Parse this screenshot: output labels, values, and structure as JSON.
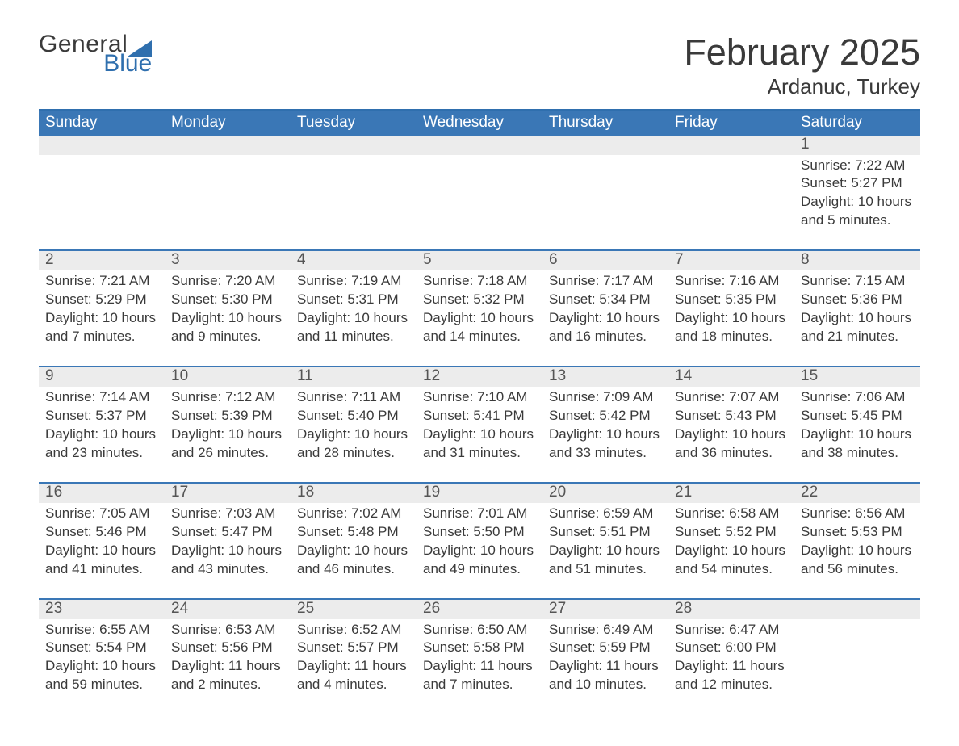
{
  "logo": {
    "top": "General",
    "bottom": "Blue",
    "tri_color": "#2f6fae"
  },
  "header": {
    "month_title": "February 2025",
    "location": "Ardanuc, Turkey"
  },
  "colors": {
    "header_bar": "#3a77b6",
    "border": "#2f6fae",
    "daynum_bg": "#ececec",
    "text": "#3a3a3a",
    "white": "#ffffff"
  },
  "typography": {
    "month_title_fontsize": 45,
    "location_fontsize": 26,
    "dow_fontsize": 19,
    "daynum_fontsize": 19,
    "body_fontsize": 17
  },
  "days_of_week": [
    "Sunday",
    "Monday",
    "Tuesday",
    "Wednesday",
    "Thursday",
    "Friday",
    "Saturday"
  ],
  "weeks": [
    [
      null,
      null,
      null,
      null,
      null,
      null,
      {
        "n": "1",
        "sunrise": "Sunrise: 7:22 AM",
        "sunset": "Sunset: 5:27 PM",
        "day": "Daylight: 10 hours and 5 minutes."
      }
    ],
    [
      {
        "n": "2",
        "sunrise": "Sunrise: 7:21 AM",
        "sunset": "Sunset: 5:29 PM",
        "day": "Daylight: 10 hours and 7 minutes."
      },
      {
        "n": "3",
        "sunrise": "Sunrise: 7:20 AM",
        "sunset": "Sunset: 5:30 PM",
        "day": "Daylight: 10 hours and 9 minutes."
      },
      {
        "n": "4",
        "sunrise": "Sunrise: 7:19 AM",
        "sunset": "Sunset: 5:31 PM",
        "day": "Daylight: 10 hours and 11 minutes."
      },
      {
        "n": "5",
        "sunrise": "Sunrise: 7:18 AM",
        "sunset": "Sunset: 5:32 PM",
        "day": "Daylight: 10 hours and 14 minutes."
      },
      {
        "n": "6",
        "sunrise": "Sunrise: 7:17 AM",
        "sunset": "Sunset: 5:34 PM",
        "day": "Daylight: 10 hours and 16 minutes."
      },
      {
        "n": "7",
        "sunrise": "Sunrise: 7:16 AM",
        "sunset": "Sunset: 5:35 PM",
        "day": "Daylight: 10 hours and 18 minutes."
      },
      {
        "n": "8",
        "sunrise": "Sunrise: 7:15 AM",
        "sunset": "Sunset: 5:36 PM",
        "day": "Daylight: 10 hours and 21 minutes."
      }
    ],
    [
      {
        "n": "9",
        "sunrise": "Sunrise: 7:14 AM",
        "sunset": "Sunset: 5:37 PM",
        "day": "Daylight: 10 hours and 23 minutes."
      },
      {
        "n": "10",
        "sunrise": "Sunrise: 7:12 AM",
        "sunset": "Sunset: 5:39 PM",
        "day": "Daylight: 10 hours and 26 minutes."
      },
      {
        "n": "11",
        "sunrise": "Sunrise: 7:11 AM",
        "sunset": "Sunset: 5:40 PM",
        "day": "Daylight: 10 hours and 28 minutes."
      },
      {
        "n": "12",
        "sunrise": "Sunrise: 7:10 AM",
        "sunset": "Sunset: 5:41 PM",
        "day": "Daylight: 10 hours and 31 minutes."
      },
      {
        "n": "13",
        "sunrise": "Sunrise: 7:09 AM",
        "sunset": "Sunset: 5:42 PM",
        "day": "Daylight: 10 hours and 33 minutes."
      },
      {
        "n": "14",
        "sunrise": "Sunrise: 7:07 AM",
        "sunset": "Sunset: 5:43 PM",
        "day": "Daylight: 10 hours and 36 minutes."
      },
      {
        "n": "15",
        "sunrise": "Sunrise: 7:06 AM",
        "sunset": "Sunset: 5:45 PM",
        "day": "Daylight: 10 hours and 38 minutes."
      }
    ],
    [
      {
        "n": "16",
        "sunrise": "Sunrise: 7:05 AM",
        "sunset": "Sunset: 5:46 PM",
        "day": "Daylight: 10 hours and 41 minutes."
      },
      {
        "n": "17",
        "sunrise": "Sunrise: 7:03 AM",
        "sunset": "Sunset: 5:47 PM",
        "day": "Daylight: 10 hours and 43 minutes."
      },
      {
        "n": "18",
        "sunrise": "Sunrise: 7:02 AM",
        "sunset": "Sunset: 5:48 PM",
        "day": "Daylight: 10 hours and 46 minutes."
      },
      {
        "n": "19",
        "sunrise": "Sunrise: 7:01 AM",
        "sunset": "Sunset: 5:50 PM",
        "day": "Daylight: 10 hours and 49 minutes."
      },
      {
        "n": "20",
        "sunrise": "Sunrise: 6:59 AM",
        "sunset": "Sunset: 5:51 PM",
        "day": "Daylight: 10 hours and 51 minutes."
      },
      {
        "n": "21",
        "sunrise": "Sunrise: 6:58 AM",
        "sunset": "Sunset: 5:52 PM",
        "day": "Daylight: 10 hours and 54 minutes."
      },
      {
        "n": "22",
        "sunrise": "Sunrise: 6:56 AM",
        "sunset": "Sunset: 5:53 PM",
        "day": "Daylight: 10 hours and 56 minutes."
      }
    ],
    [
      {
        "n": "23",
        "sunrise": "Sunrise: 6:55 AM",
        "sunset": "Sunset: 5:54 PM",
        "day": "Daylight: 10 hours and 59 minutes."
      },
      {
        "n": "24",
        "sunrise": "Sunrise: 6:53 AM",
        "sunset": "Sunset: 5:56 PM",
        "day": "Daylight: 11 hours and 2 minutes."
      },
      {
        "n": "25",
        "sunrise": "Sunrise: 6:52 AM",
        "sunset": "Sunset: 5:57 PM",
        "day": "Daylight: 11 hours and 4 minutes."
      },
      {
        "n": "26",
        "sunrise": "Sunrise: 6:50 AM",
        "sunset": "Sunset: 5:58 PM",
        "day": "Daylight: 11 hours and 7 minutes."
      },
      {
        "n": "27",
        "sunrise": "Sunrise: 6:49 AM",
        "sunset": "Sunset: 5:59 PM",
        "day": "Daylight: 11 hours and 10 minutes."
      },
      {
        "n": "28",
        "sunrise": "Sunrise: 6:47 AM",
        "sunset": "Sunset: 6:00 PM",
        "day": "Daylight: 11 hours and 12 minutes."
      },
      null
    ]
  ]
}
